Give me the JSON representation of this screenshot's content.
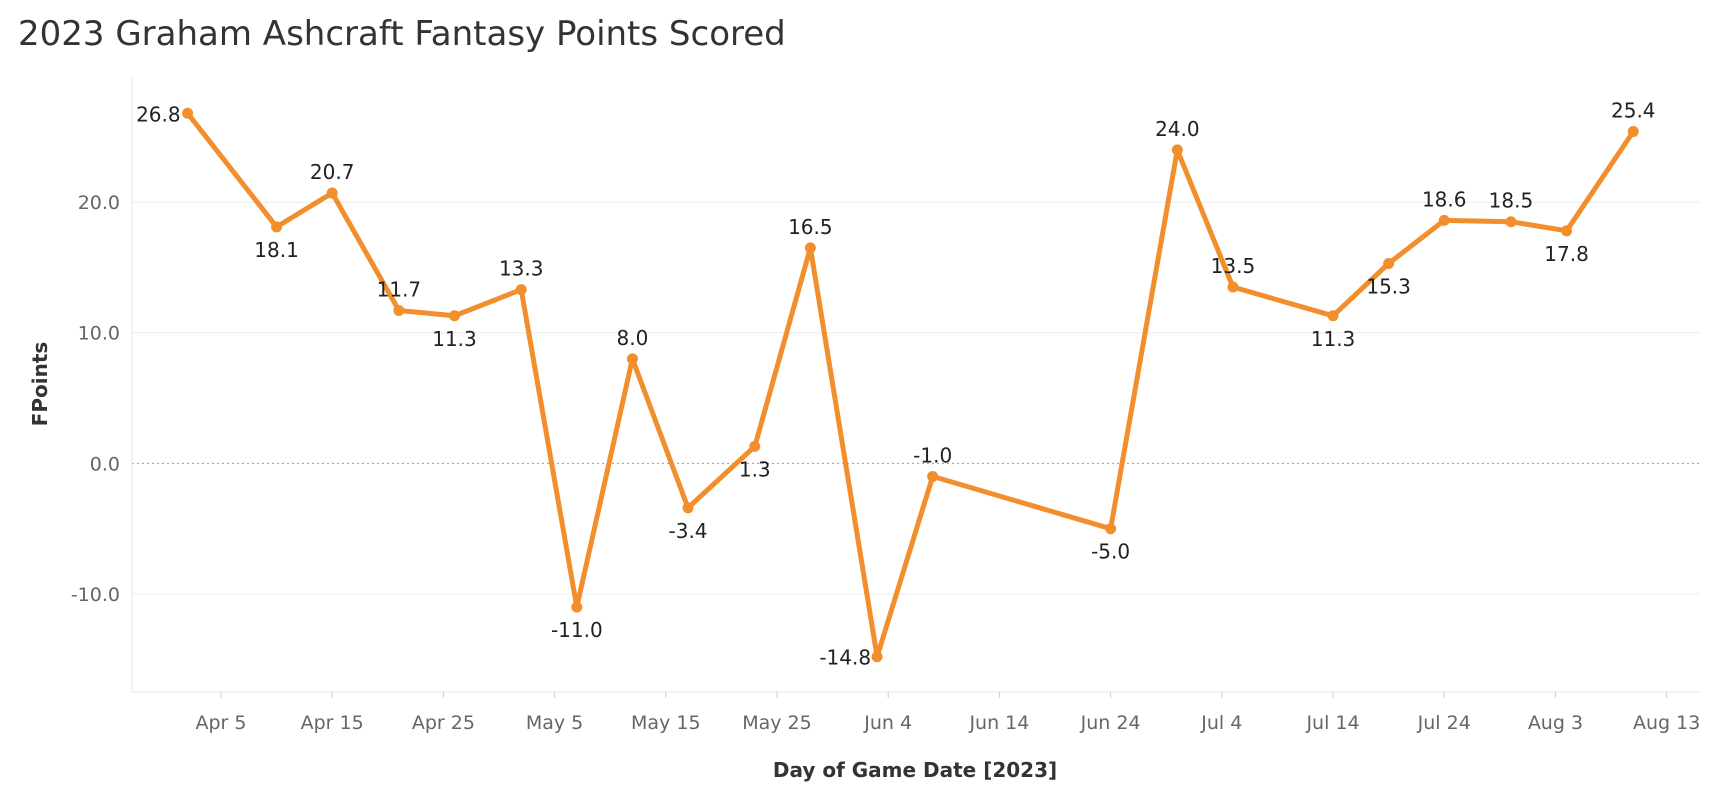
{
  "title": "2023 Graham Ashcraft Fantasy Points Scored",
  "chart_data": {
    "type": "line",
    "title": "2023 Graham Ashcraft Fantasy Points Scored",
    "xlabel": "Day of Game Date [2023]",
    "ylabel": "FPoints",
    "x_tick_labels": [
      "Apr 5",
      "Apr 15",
      "Apr 25",
      "May 5",
      "May 15",
      "May 25",
      "Jun 4",
      "Jun 14",
      "Jun 24",
      "Jul 4",
      "Jul 14",
      "Jul 24",
      "Aug 3",
      "Aug 13"
    ],
    "x_ticks": [
      "2023-04-05",
      "2023-04-15",
      "2023-04-25",
      "2023-05-05",
      "2023-05-15",
      "2023-05-25",
      "2023-06-04",
      "2023-06-14",
      "2023-06-24",
      "2023-07-04",
      "2023-07-14",
      "2023-07-24",
      "2023-08-03",
      "2023-08-13"
    ],
    "y_ticks": [
      20,
      10,
      0,
      -10
    ],
    "y_tick_labels": [
      "20.0",
      "10.0",
      "0.0",
      "-10.0"
    ],
    "ylim": [
      -17.5,
      29.5
    ],
    "xlim": [
      "2023-03-28",
      "2023-08-16"
    ],
    "grid": true,
    "color": "#F28E2B",
    "series": [
      {
        "points": [
          {
            "x": "2023-04-02",
            "y": 26.8,
            "label": "26.8"
          },
          {
            "x": "2023-04-10",
            "y": 18.1,
            "label": "18.1"
          },
          {
            "x": "2023-04-15",
            "y": 20.7,
            "label": "20.7"
          },
          {
            "x": "2023-04-21",
            "y": 11.7,
            "label": "11.7"
          },
          {
            "x": "2023-04-26",
            "y": 11.3,
            "label": "11.3"
          },
          {
            "x": "2023-05-02",
            "y": 13.3,
            "label": "13.3"
          },
          {
            "x": "2023-05-07",
            "y": -11.0,
            "label": "-11.0"
          },
          {
            "x": "2023-05-12",
            "y": 8.0,
            "label": "8.0"
          },
          {
            "x": "2023-05-17",
            "y": -3.4,
            "label": "-3.4"
          },
          {
            "x": "2023-05-23",
            "y": 1.3,
            "label": "1.3"
          },
          {
            "x": "2023-05-28",
            "y": 16.5,
            "label": "16.5"
          },
          {
            "x": "2023-06-03",
            "y": -14.8,
            "label": "-14.8"
          },
          {
            "x": "2023-06-08",
            "y": -1.0,
            "label": "-1.0"
          },
          {
            "x": "2023-06-24",
            "y": -5.0,
            "label": "-5.0"
          },
          {
            "x": "2023-06-30",
            "y": 24.0,
            "label": "24.0"
          },
          {
            "x": "2023-07-05",
            "y": 13.5,
            "label": "13.5"
          },
          {
            "x": "2023-07-14",
            "y": 11.3,
            "label": "11.3"
          },
          {
            "x": "2023-07-19",
            "y": 15.3,
            "label": "15.3"
          },
          {
            "x": "2023-07-24",
            "y": 18.6,
            "label": "18.6"
          },
          {
            "x": "2023-07-30",
            "y": 18.5,
            "label": "18.5"
          },
          {
            "x": "2023-08-04",
            "y": 17.8,
            "label": "17.8"
          },
          {
            "x": "2023-08-10",
            "y": 25.4,
            "label": "25.4"
          }
        ]
      }
    ]
  }
}
